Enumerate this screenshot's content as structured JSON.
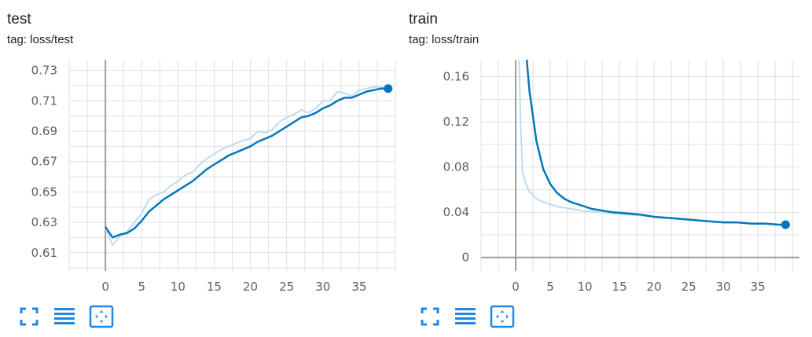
{
  "colors": {
    "accent": "#0277bd",
    "raw": "#bfdcef",
    "grid": "#e0e0e0",
    "axis": "#9e9e9e",
    "button": "#1e88e5"
  },
  "icons": {
    "fullscreen": "fullscreen-icon",
    "log_scale": "toggle-y-log-scale-icon",
    "fit_domain": "fit-domain-icon"
  },
  "charts": [
    {
      "title": "test",
      "tag": "tag: loss/test"
    },
    {
      "title": "train",
      "tag": "tag: loss/train"
    }
  ],
  "chart_data": [
    {
      "type": "line",
      "title": "test",
      "subtitle": "tag: loss/test",
      "xlim": [
        -5,
        40
      ],
      "ylim": [
        0.598,
        0.737
      ],
      "xticks": [
        0,
        5,
        10,
        15,
        20,
        25,
        30,
        35
      ],
      "xtick_labels": [
        "0",
        "5",
        "10",
        "15",
        "20",
        "25",
        "30",
        "35"
      ],
      "yticks": [
        0.61,
        0.63,
        0.65,
        0.67,
        0.69,
        0.71,
        0.73
      ],
      "ytick_labels": [
        "0.61",
        "0.63",
        "0.65",
        "0.67",
        "0.69",
        "0.71",
        "0.73"
      ],
      "grid": true,
      "series": [
        {
          "role": "raw",
          "x": [
            0,
            1,
            2,
            3,
            4,
            5,
            6,
            7,
            8,
            9,
            10,
            11,
            12,
            13,
            14,
            15,
            16,
            17,
            18,
            19,
            20,
            21,
            22,
            23,
            24,
            25,
            26,
            27,
            28,
            29,
            30,
            31,
            32,
            33,
            34,
            35,
            36,
            37,
            38,
            39
          ],
          "values": [
            0.626,
            0.615,
            0.621,
            0.624,
            0.63,
            0.636,
            0.645,
            0.648,
            0.65,
            0.654,
            0.657,
            0.661,
            0.663,
            0.668,
            0.672,
            0.675,
            0.678,
            0.68,
            0.682,
            0.684,
            0.685,
            0.69,
            0.689,
            0.691,
            0.696,
            0.699,
            0.701,
            0.704,
            0.702,
            0.705,
            0.71,
            0.71,
            0.716,
            0.715,
            0.713,
            0.717,
            0.718,
            0.719,
            0.719,
            0.718
          ]
        },
        {
          "role": "smoothed",
          "x": [
            0,
            1,
            2,
            3,
            4,
            5,
            6,
            7,
            8,
            9,
            10,
            11,
            12,
            13,
            14,
            15,
            16,
            17,
            18,
            19,
            20,
            21,
            22,
            23,
            24,
            25,
            26,
            27,
            28,
            29,
            30,
            31,
            32,
            33,
            34,
            35,
            36,
            37,
            38,
            39
          ],
          "values": [
            0.627,
            0.62,
            0.622,
            0.623,
            0.626,
            0.631,
            0.637,
            0.641,
            0.645,
            0.648,
            0.651,
            0.654,
            0.657,
            0.661,
            0.665,
            0.668,
            0.671,
            0.674,
            0.676,
            0.678,
            0.68,
            0.683,
            0.685,
            0.687,
            0.69,
            0.693,
            0.696,
            0.699,
            0.7,
            0.702,
            0.705,
            0.707,
            0.71,
            0.712,
            0.712,
            0.714,
            0.716,
            0.717,
            0.718,
            0.718
          ]
        }
      ]
    },
    {
      "type": "line",
      "title": "train",
      "subtitle": "tag: loss/train",
      "xlim": [
        -5,
        41
      ],
      "ylim": [
        -0.012,
        0.175
      ],
      "xticks": [
        0,
        5,
        10,
        15,
        20,
        25,
        30,
        35
      ],
      "xtick_labels": [
        "0",
        "5",
        "10",
        "15",
        "20",
        "25",
        "30",
        "35"
      ],
      "yticks": [
        0,
        0.04,
        0.08,
        0.12,
        0.16
      ],
      "ytick_labels": [
        "0",
        "0.04",
        "0.08",
        "0.12",
        "0.16"
      ],
      "grid": true,
      "series": [
        {
          "role": "raw",
          "x": [
            0.5,
            0.7,
            1,
            1.5,
            2,
            3,
            4,
            5,
            6,
            7,
            8,
            9,
            10,
            12,
            14,
            16,
            18,
            20,
            22,
            24,
            26,
            28,
            30,
            32,
            34,
            36,
            38,
            39
          ],
          "values": [
            0.175,
            0.12,
            0.075,
            0.065,
            0.058,
            0.052,
            0.049,
            0.047,
            0.045,
            0.044,
            0.043,
            0.042,
            0.041,
            0.04,
            0.039,
            0.038,
            0.037,
            0.036,
            0.035,
            0.034,
            0.033,
            0.032,
            0.031,
            0.031,
            0.03,
            0.03,
            0.029,
            0.029
          ]
        },
        {
          "role": "smoothed",
          "x": [
            1.6,
            2,
            3,
            4,
            5,
            6,
            7,
            8,
            9,
            10,
            11,
            12,
            13,
            14,
            15,
            16,
            18,
            20,
            22,
            24,
            26,
            28,
            30,
            32,
            34,
            36,
            38,
            39
          ],
          "values": [
            0.175,
            0.147,
            0.103,
            0.078,
            0.065,
            0.057,
            0.052,
            0.049,
            0.047,
            0.045,
            0.043,
            0.042,
            0.041,
            0.04,
            0.0395,
            0.039,
            0.038,
            0.036,
            0.035,
            0.034,
            0.033,
            0.032,
            0.031,
            0.031,
            0.03,
            0.03,
            0.029,
            0.029
          ]
        }
      ]
    }
  ]
}
